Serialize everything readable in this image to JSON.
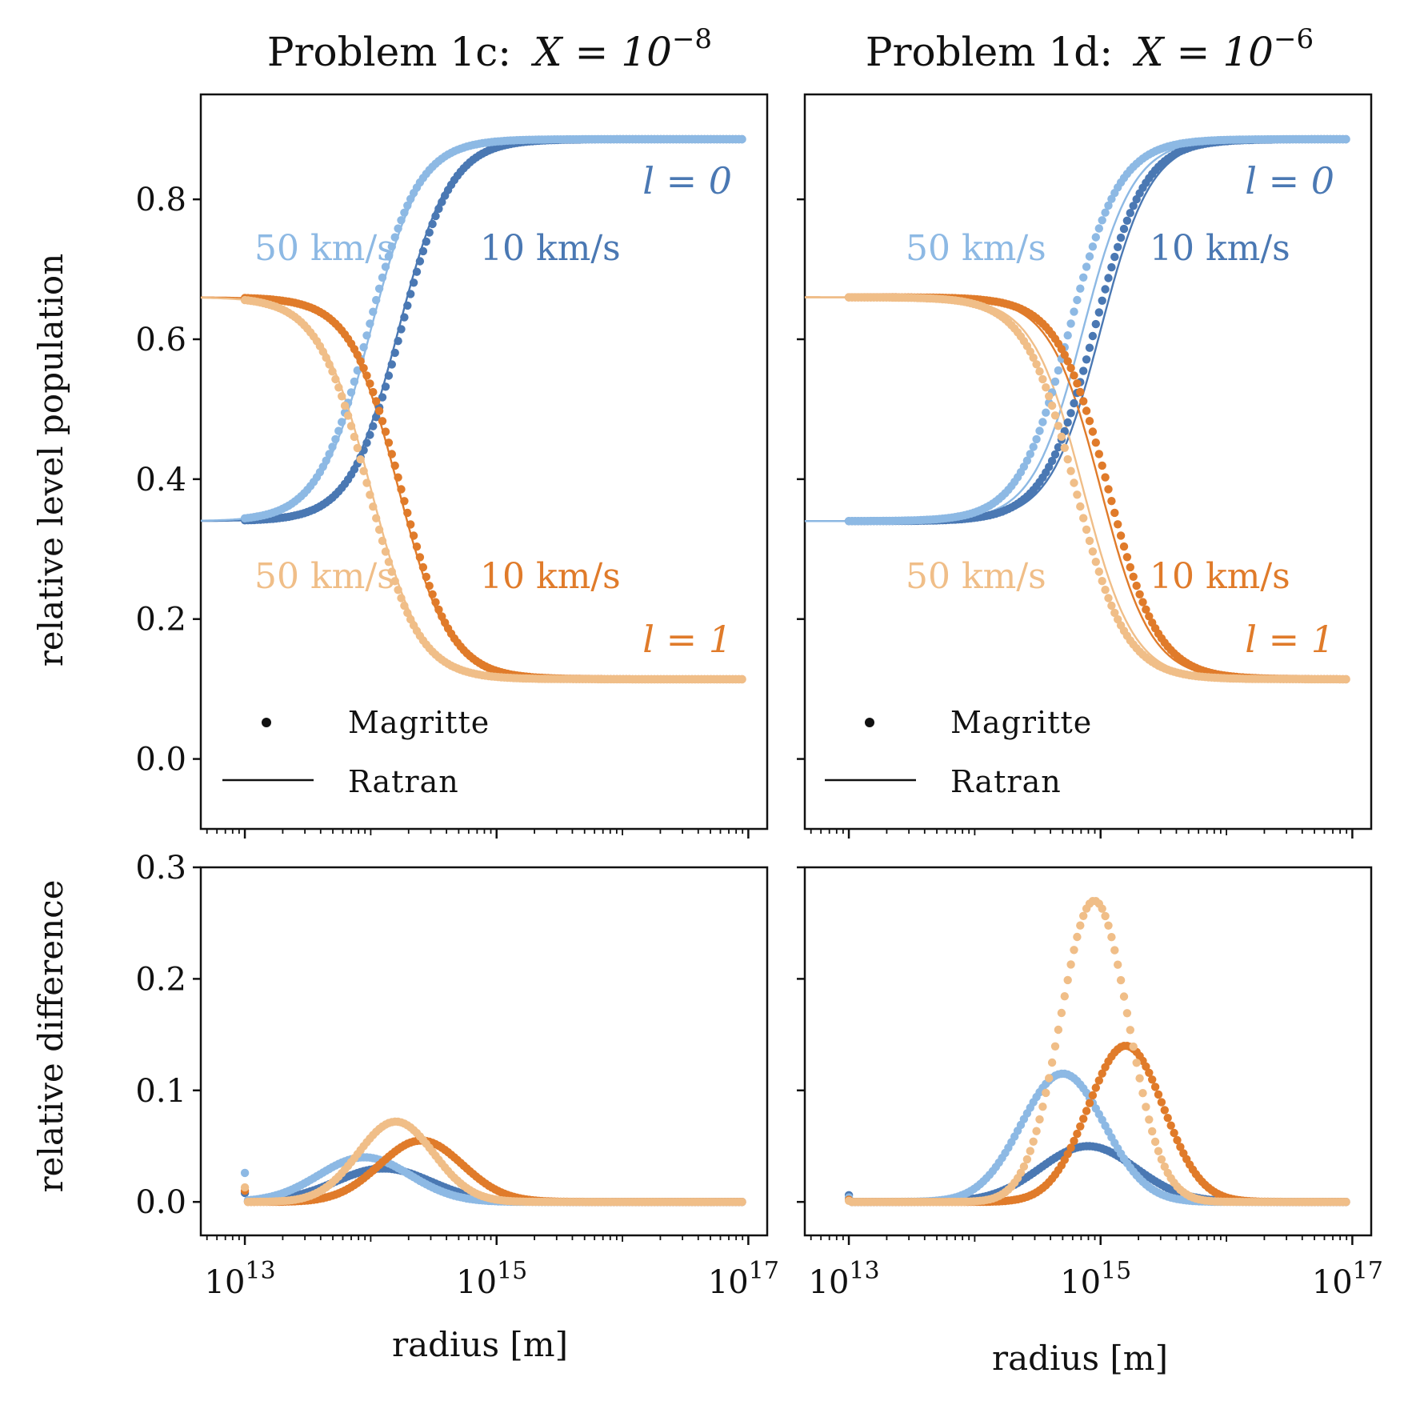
{
  "chart_data": [
    {
      "type": "scatter",
      "panel": "top-left",
      "title": "Problem 1c:",
      "title_math": "X = 10",
      "title_exponent": "−8",
      "ylabel": "relative level population",
      "xlabel": "",
      "xscale": "log",
      "xlim_exp": [
        12.65,
        17.15
      ],
      "ylim": [
        -0.1,
        0.95
      ],
      "yticks": [
        "0.0",
        "0.2",
        "0.4",
        "0.6",
        "0.8"
      ],
      "yticks_values": [
        0.0,
        0.2,
        0.4,
        0.6,
        0.8
      ],
      "series": [
        {
          "name": "l=0 10 km/s",
          "color": "#4a78b3",
          "low": 0.34,
          "high": 0.886,
          "center_exp": 14.22,
          "width": 0.2,
          "magritte_center_exp": 14.24
        },
        {
          "name": "l=0 50 km/s",
          "color": "#8db9e4",
          "low": 0.34,
          "high": 0.886,
          "center_exp": 14.0,
          "width": 0.2,
          "magritte_center_exp": 13.98
        },
        {
          "name": "l=1 10 km/s",
          "color": "#e07b2a",
          "low": 0.114,
          "high": 0.66,
          "center_exp": 14.22,
          "width": 0.2,
          "magritte_center_exp": 14.24
        },
        {
          "name": "l=1 50 km/s",
          "color": "#f0be88",
          "low": 0.114,
          "high": 0.66,
          "center_exp": 14.0,
          "width": 0.2,
          "magritte_center_exp": 13.98
        }
      ],
      "annotations": [
        {
          "text": "l = 0",
          "color": "#4a78b3"
        },
        {
          "text": "l = 1",
          "color": "#e07b2a"
        },
        {
          "text": "50 km/s",
          "color": "#8db9e4"
        },
        {
          "text": "10 km/s",
          "color": "#4a78b3"
        },
        {
          "text": "50 km/s",
          "color": "#f0be88"
        },
        {
          "text": "10 km/s",
          "color": "#e07b2a"
        }
      ],
      "legend": {
        "position": "lower-left",
        "entries": [
          "Magritte",
          "Ratran"
        ]
      }
    },
    {
      "type": "scatter",
      "panel": "top-right",
      "title": "Problem 1d:",
      "title_math": "X = 10",
      "title_exponent": "−6",
      "ylabel": "",
      "xlabel": "",
      "xscale": "log",
      "xlim_exp": [
        12.65,
        17.15
      ],
      "ylim": [
        -0.1,
        0.95
      ],
      "series": [
        {
          "name": "l=0 10 km/s",
          "color": "#4a78b3",
          "low": 0.34,
          "high": 0.886,
          "center_exp": 15.0,
          "width": 0.2,
          "magritte_center_exp": 14.95
        },
        {
          "name": "l=0 50 km/s",
          "color": "#8db9e4",
          "low": 0.34,
          "high": 0.886,
          "center_exp": 14.86,
          "width": 0.2,
          "magritte_center_exp": 14.75
        },
        {
          "name": "l=1 10 km/s",
          "color": "#e07b2a",
          "low": 0.114,
          "high": 0.66,
          "center_exp": 15.0,
          "width": 0.2,
          "magritte_center_exp": 15.06
        },
        {
          "name": "l=1 50 km/s",
          "color": "#f0be88",
          "low": 0.114,
          "high": 0.66,
          "center_exp": 14.86,
          "width": 0.2,
          "magritte_center_exp": 14.8
        }
      ],
      "annotations": [
        {
          "text": "l = 0",
          "color": "#4a78b3"
        },
        {
          "text": "l = 1",
          "color": "#e07b2a"
        },
        {
          "text": "50 km/s",
          "color": "#8db9e4"
        },
        {
          "text": "10 km/s",
          "color": "#4a78b3"
        },
        {
          "text": "50 km/s",
          "color": "#f0be88"
        },
        {
          "text": "10 km/s",
          "color": "#e07b2a"
        }
      ],
      "legend": {
        "position": "lower-left",
        "entries": [
          "Magritte",
          "Ratran"
        ]
      }
    },
    {
      "type": "scatter",
      "panel": "bottom-left",
      "ylabel": "relative difference",
      "xlabel": "radius [m]",
      "xscale": "log",
      "xlim_exp": [
        12.65,
        17.15
      ],
      "ylim": [
        -0.03,
        0.3
      ],
      "yticks": [
        "0.0",
        "0.1",
        "0.2",
        "0.3"
      ],
      "yticks_values": [
        0.0,
        0.1,
        0.2,
        0.3
      ],
      "xticks_base": "10",
      "xticks_exp": [
        "13",
        "15",
        "17"
      ],
      "xticks_values": [
        13,
        15,
        17
      ],
      "series": [
        {
          "name": "l=0 10 km/s",
          "color": "#4a78b3",
          "peak": 0.03,
          "center_exp": 14.1,
          "width": 0.38
        },
        {
          "name": "l=0 50 km/s",
          "color": "#8db9e4",
          "peak": 0.04,
          "center_exp": 13.95,
          "width": 0.36
        },
        {
          "name": "l=1 10 km/s",
          "color": "#e07b2a",
          "peak": 0.055,
          "center_exp": 14.4,
          "width": 0.33
        },
        {
          "name": "l=1 50 km/s",
          "color": "#f0be88",
          "peak": 0.072,
          "center_exp": 14.2,
          "width": 0.3
        }
      ],
      "first_point_values": [
        0.008,
        0.026,
        0.01,
        0.013
      ]
    },
    {
      "type": "scatter",
      "panel": "bottom-right",
      "ylabel": "",
      "xlabel": "radius [m]",
      "xscale": "log",
      "xlim_exp": [
        12.65,
        17.15
      ],
      "ylim": [
        -0.03,
        0.3
      ],
      "xticks_base": "10",
      "xticks_exp": [
        "13",
        "15",
        "17"
      ],
      "xticks_values": [
        13,
        15,
        17
      ],
      "series": [
        {
          "name": "l=0 10 km/s",
          "color": "#4a78b3",
          "peak": 0.05,
          "center_exp": 14.9,
          "width": 0.38
        },
        {
          "name": "l=0 50 km/s",
          "color": "#8db9e4",
          "peak": 0.115,
          "center_exp": 14.7,
          "width": 0.33
        },
        {
          "name": "l=1 10 km/s",
          "color": "#e07b2a",
          "peak": 0.14,
          "center_exp": 15.2,
          "width": 0.3
        },
        {
          "name": "l=1 50 km/s",
          "color": "#f0be88",
          "peak": 0.27,
          "center_exp": 14.95,
          "width": 0.27
        }
      ],
      "first_point_values": [
        0.006,
        0.004,
        0.002,
        0.001
      ]
    }
  ],
  "x_range_exp": [
    13.0,
    16.95
  ],
  "n_points": 160
}
